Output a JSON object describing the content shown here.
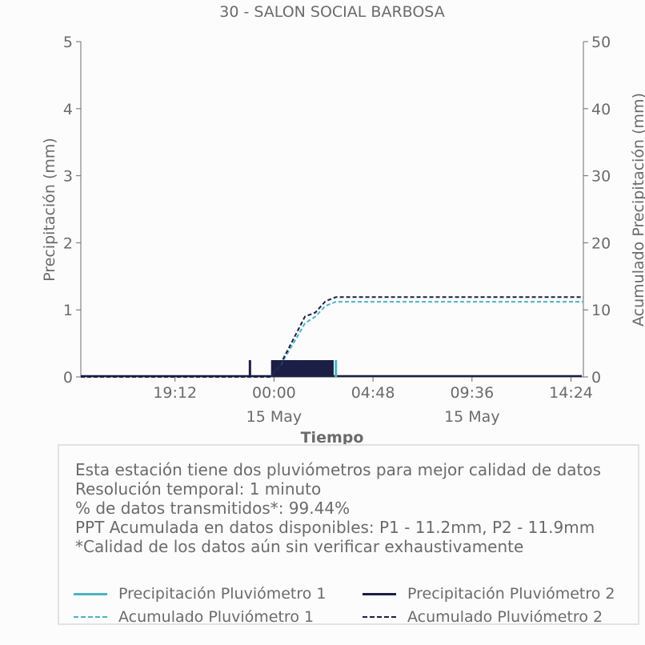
{
  "colors": {
    "p1": "#4bb3c4",
    "p2": "#1c1f45",
    "axis": "#6b6b6b",
    "text": "#6b6b6b"
  },
  "chart_data": {
    "type": "line",
    "title": "30 - SALON SOCIAL BARBOSA",
    "xlabel": "Tiempo",
    "ylabel": "Precipitación (mm)",
    "y2label": "Acumulado Precipitación (mm)",
    "ylim": [
      0,
      5
    ],
    "y2lim": [
      0,
      50
    ],
    "yticks": [
      "0",
      "1",
      "2",
      "3",
      "4",
      "5"
    ],
    "y2ticks": [
      "0",
      "10",
      "20",
      "30",
      "40",
      "50"
    ],
    "xlim": [
      "2024-05-14 14:38",
      "2024-05-15 15:00"
    ],
    "xticks": [
      {
        "time": "2024-05-14 19:12",
        "label": "19:12",
        "sublabel": ""
      },
      {
        "time": "2024-05-15 00:00",
        "label": "00:00",
        "sublabel": "15 May"
      },
      {
        "time": "2024-05-15 04:48",
        "label": "04:48",
        "sublabel": ""
      },
      {
        "time": "2024-05-15 09:36",
        "label": "09:36",
        "sublabel": "15 May"
      },
      {
        "time": "2024-05-15 14:24",
        "label": "14:24",
        "sublabel": ""
      }
    ],
    "grid": false,
    "series": [
      {
        "name": "Acumulado Pluviómetro 1",
        "axis": "right",
        "style": "dashed",
        "x": [
          "2024-05-14 14:38",
          "2024-05-14 23:50",
          "2024-05-15 00:15",
          "2024-05-15 00:45",
          "2024-05-15 01:30",
          "2024-05-15 02:00",
          "2024-05-15 02:30",
          "2024-05-15 03:00",
          "2024-05-15 15:00"
        ],
        "y": [
          0,
          0,
          1.5,
          4.0,
          8.0,
          9.0,
          10.6,
          11.2,
          11.2
        ]
      },
      {
        "name": "Acumulado Pluviómetro 2",
        "axis": "right",
        "style": "dashed",
        "x": [
          "2024-05-14 14:38",
          "2024-05-14 23:50",
          "2024-05-15 00:15",
          "2024-05-15 00:45",
          "2024-05-15 01:30",
          "2024-05-15 02:00",
          "2024-05-15 02:30",
          "2024-05-15 03:00",
          "2024-05-15 15:00"
        ],
        "y": [
          0,
          0,
          1.5,
          4.5,
          9.0,
          9.6,
          11.3,
          11.9,
          11.9
        ]
      },
      {
        "name": "Precipitación Pluviómetro 1",
        "axis": "left",
        "style": "solid",
        "x": [
          "2024-05-14 23:55",
          "2024-05-15 00:00",
          "2024-05-15 00:05",
          "2024-05-15 00:10",
          "2024-05-15 00:20",
          "2024-05-15 00:30",
          "2024-05-15 00:40",
          "2024-05-15 00:50",
          "2024-05-15 01:00",
          "2024-05-15 01:10",
          "2024-05-15 01:20",
          "2024-05-15 01:30",
          "2024-05-15 01:40",
          "2024-05-15 01:50",
          "2024-05-15 02:00",
          "2024-05-15 02:10",
          "2024-05-15 02:20",
          "2024-05-15 02:30",
          "2024-05-15 02:40",
          "2024-05-15 02:50",
          "2024-05-15 03:00"
        ],
        "y": [
          0.25,
          0.25,
          0.25,
          0.25,
          0.25,
          0.25,
          0.25,
          0.25,
          0.25,
          0.25,
          0.25,
          0.25,
          0.25,
          0.25,
          0.25,
          0.25,
          0.25,
          0.25,
          0.25,
          0.25,
          0.25
        ]
      },
      {
        "name": "Precipitación Pluviómetro 2",
        "axis": "left",
        "style": "solid",
        "x": [
          "2024-05-14 22:50",
          "2024-05-14 23:55",
          "2024-05-15 00:00",
          "2024-05-15 00:05",
          "2024-05-15 00:10",
          "2024-05-15 00:20",
          "2024-05-15 00:30",
          "2024-05-15 00:40",
          "2024-05-15 00:50",
          "2024-05-15 01:00",
          "2024-05-15 01:10",
          "2024-05-15 01:20",
          "2024-05-15 01:30",
          "2024-05-15 01:40",
          "2024-05-15 01:50",
          "2024-05-15 02:00",
          "2024-05-15 02:10",
          "2024-05-15 02:20",
          "2024-05-15 02:30",
          "2024-05-15 02:40",
          "2024-05-15 02:50"
        ],
        "y": [
          0.25,
          0.25,
          0.25,
          0.25,
          0.25,
          0.25,
          0.25,
          0.25,
          0.25,
          0.25,
          0.25,
          0.25,
          0.25,
          0.25,
          0.25,
          0.25,
          0.25,
          0.25,
          0.25,
          0.25,
          0.25
        ]
      }
    ]
  },
  "info": {
    "lines": [
      "Esta estación tiene dos pluviómetros para mejor calidad de datos",
      "Resolución temporal: 1 minuto",
      "% de datos transmitidos*: 99.44%",
      "PPT Acumulada en datos disponibles: P1 - 11.2mm, P2 - 11.9mm",
      "*Calidad de los datos aún sin verificar exhaustivamente"
    ]
  },
  "legend": {
    "items": [
      {
        "label": "Precipitación Pluviómetro 1",
        "color": "#4bb3c4",
        "style": "solid"
      },
      {
        "label": "Precipitación Pluviómetro 2",
        "color": "#1c1f45",
        "style": "solid"
      },
      {
        "label": "Acumulado Pluviómetro 1",
        "color": "#4bb3c4",
        "style": "dashed"
      },
      {
        "label": "Acumulado Pluviómetro 2",
        "color": "#1c1f45",
        "style": "dashed"
      }
    ]
  }
}
